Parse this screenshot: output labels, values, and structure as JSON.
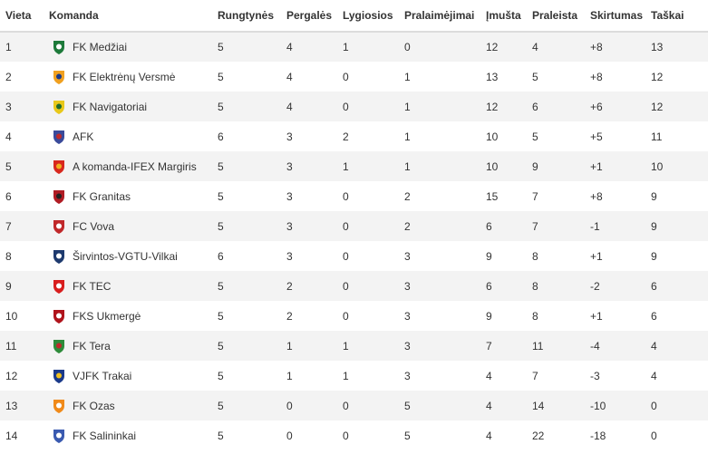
{
  "headers": {
    "pos": "Vieta",
    "team": "Komanda",
    "played": "Rungtynės",
    "won": "Pergalės",
    "drawn": "Lygiosios",
    "lost": "Pralaimėjimai",
    "gf": "Įmušta",
    "ga": "Praleista",
    "gd": "Skirtumas",
    "pts": "Taškai"
  },
  "rows": [
    {
      "pos": "1",
      "team": "FK Medžiai",
      "played": "5",
      "won": "4",
      "drawn": "1",
      "lost": "0",
      "gf": "12",
      "ga": "4",
      "gd": "+8",
      "pts": "13",
      "logo_icon": "medziai-logo-icon",
      "logo_colors": [
        "#1d7a3a",
        "#ffffff"
      ]
    },
    {
      "pos": "2",
      "team": "FK Elektrėnų Versmė",
      "played": "5",
      "won": "4",
      "drawn": "0",
      "lost": "1",
      "gf": "13",
      "ga": "5",
      "gd": "+8",
      "pts": "12",
      "logo_icon": "versme-logo-icon",
      "logo_colors": [
        "#f0a020",
        "#1a3a8a"
      ]
    },
    {
      "pos": "3",
      "team": "FK Navigatoriai",
      "played": "5",
      "won": "4",
      "drawn": "0",
      "lost": "1",
      "gf": "12",
      "ga": "6",
      "gd": "+6",
      "pts": "12",
      "logo_icon": "navigatoriai-logo-icon",
      "logo_colors": [
        "#e8c81a",
        "#1f6b2c"
      ]
    },
    {
      "pos": "4",
      "team": "AFK",
      "played": "6",
      "won": "3",
      "drawn": "2",
      "lost": "1",
      "gf": "10",
      "ga": "5",
      "gd": "+5",
      "pts": "11",
      "logo_icon": "afk-logo-icon",
      "logo_colors": [
        "#3a4a9a",
        "#c02a2a"
      ]
    },
    {
      "pos": "5",
      "team": "A komanda-IFEX Margiris",
      "played": "5",
      "won": "3",
      "drawn": "1",
      "lost": "1",
      "gf": "10",
      "ga": "9",
      "gd": "+1",
      "pts": "10",
      "logo_icon": "margiris-logo-icon",
      "logo_colors": [
        "#d8281e",
        "#f0b020"
      ]
    },
    {
      "pos": "6",
      "team": "FK Granitas",
      "played": "5",
      "won": "3",
      "drawn": "0",
      "lost": "2",
      "gf": "15",
      "ga": "7",
      "gd": "+8",
      "pts": "9",
      "logo_icon": "granitas-logo-icon",
      "logo_colors": [
        "#b01c24",
        "#222222"
      ]
    },
    {
      "pos": "7",
      "team": "FC Vova",
      "played": "5",
      "won": "3",
      "drawn": "0",
      "lost": "2",
      "gf": "6",
      "ga": "7",
      "gd": "-1",
      "pts": "9",
      "logo_icon": "vova-logo-icon",
      "logo_colors": [
        "#c0282a",
        "#ffffff"
      ]
    },
    {
      "pos": "8",
      "team": "Širvintos-VGTU-Vilkai",
      "played": "6",
      "won": "3",
      "drawn": "0",
      "lost": "3",
      "gf": "9",
      "ga": "8",
      "gd": "+1",
      "pts": "9",
      "logo_icon": "vilkai-logo-icon",
      "logo_colors": [
        "#1e3a6e",
        "#ffffff"
      ]
    },
    {
      "pos": "9",
      "team": "FK TEC",
      "played": "5",
      "won": "2",
      "drawn": "0",
      "lost": "3",
      "gf": "6",
      "ga": "8",
      "gd": "-2",
      "pts": "6",
      "logo_icon": "tec-logo-icon",
      "logo_colors": [
        "#d81e1e",
        "#ffffff"
      ]
    },
    {
      "pos": "10",
      "team": "FKS Ukmergė",
      "played": "5",
      "won": "2",
      "drawn": "0",
      "lost": "3",
      "gf": "9",
      "ga": "8",
      "gd": "+1",
      "pts": "6",
      "logo_icon": "ukmerge-logo-icon",
      "logo_colors": [
        "#b0141c",
        "#ffffff"
      ]
    },
    {
      "pos": "11",
      "team": "FK Tera",
      "played": "5",
      "won": "1",
      "drawn": "1",
      "lost": "3",
      "gf": "7",
      "ga": "11",
      "gd": "-4",
      "pts": "4",
      "logo_icon": "tera-logo-icon",
      "logo_colors": [
        "#2e8b3a",
        "#c0282a"
      ]
    },
    {
      "pos": "12",
      "team": "VJFK Trakai",
      "played": "5",
      "won": "1",
      "drawn": "1",
      "lost": "3",
      "gf": "4",
      "ga": "7",
      "gd": "-3",
      "pts": "4",
      "logo_icon": "trakai-logo-icon",
      "logo_colors": [
        "#1a3a8a",
        "#f0c020"
      ]
    },
    {
      "pos": "13",
      "team": "FK Ozas",
      "played": "5",
      "won": "0",
      "drawn": "0",
      "lost": "5",
      "gf": "4",
      "ga": "14",
      "gd": "-10",
      "pts": "0",
      "logo_icon": "ozas-logo-icon",
      "logo_colors": [
        "#f08a1a",
        "#ffffff"
      ]
    },
    {
      "pos": "14",
      "team": "FK Salininkai",
      "played": "5",
      "won": "0",
      "drawn": "0",
      "lost": "5",
      "gf": "4",
      "ga": "22",
      "gd": "-18",
      "pts": "0",
      "logo_icon": "salininkai-logo-icon",
      "logo_colors": [
        "#3a5ab0",
        "#ffffff"
      ]
    }
  ]
}
